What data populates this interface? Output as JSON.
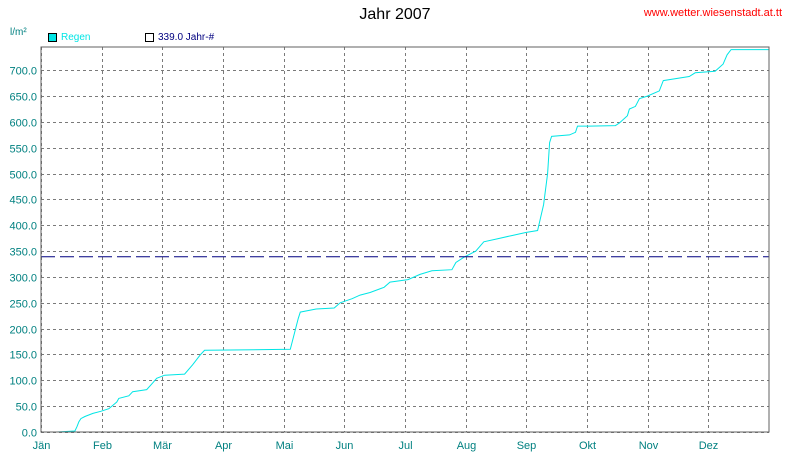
{
  "title": "Jahr 2007",
  "source_link": "www.wetter.wiesenstadt.at.tt",
  "y_unit": "l/m²",
  "legend": [
    {
      "label": "Regen",
      "color": "#00e5e5",
      "fill": "#00e5e5",
      "text_color": "#00e5e5"
    },
    {
      "label": "339.0 Jahr-#",
      "color": "#000080",
      "fill": "#ffffff",
      "text_color": "#000080"
    }
  ],
  "chart_data": {
    "type": "line",
    "title": "Jahr 2007",
    "ylabel": "l/m²",
    "x_ticks": [
      "Jän",
      "Feb",
      "Mär",
      "Apr",
      "Mai",
      "Jun",
      "Jul",
      "Aug",
      "Sep",
      "Okt",
      "Nov",
      "Dez"
    ],
    "y_ticks": [
      "0.0",
      "50.0",
      "100.0",
      "150.0",
      "200.0",
      "250.0",
      "300.0",
      "350.0",
      "400.0",
      "450.0",
      "500.0",
      "550.0",
      "600.0",
      "650.0",
      "700.0"
    ],
    "xlim": [
      0,
      365
    ],
    "ylim": [
      0,
      745
    ],
    "grid": true,
    "series": [
      {
        "name": "Regen",
        "color": "#00e5e5",
        "points": [
          [
            0,
            0
          ],
          [
            8,
            0
          ],
          [
            17,
            2
          ],
          [
            18,
            10
          ],
          [
            19,
            20
          ],
          [
            20,
            26
          ],
          [
            22,
            30
          ],
          [
            26,
            36
          ],
          [
            30,
            40
          ],
          [
            34,
            45
          ],
          [
            38,
            58
          ],
          [
            39,
            65
          ],
          [
            44,
            70
          ],
          [
            46,
            78
          ],
          [
            53,
            82
          ],
          [
            56,
            95
          ],
          [
            58,
            104
          ],
          [
            62,
            110
          ],
          [
            72,
            112
          ],
          [
            76,
            130
          ],
          [
            80,
            150
          ],
          [
            82,
            158
          ],
          [
            125,
            160
          ],
          [
            127,
            190
          ],
          [
            129,
            220
          ],
          [
            130,
            232
          ],
          [
            138,
            238
          ],
          [
            147,
            240
          ],
          [
            150,
            250
          ],
          [
            156,
            258
          ],
          [
            160,
            265
          ],
          [
            165,
            270
          ],
          [
            172,
            280
          ],
          [
            175,
            290
          ],
          [
            184,
            295
          ],
          [
            190,
            305
          ],
          [
            196,
            312
          ],
          [
            206,
            314
          ],
          [
            208,
            328
          ],
          [
            212,
            338
          ],
          [
            218,
            350
          ],
          [
            222,
            368
          ],
          [
            229,
            374
          ],
          [
            236,
            380
          ],
          [
            243,
            386
          ],
          [
            249,
            390
          ],
          [
            252,
            440
          ],
          [
            254,
            500
          ],
          [
            255,
            560
          ],
          [
            256,
            572
          ],
          [
            265,
            575
          ],
          [
            268,
            580
          ],
          [
            269,
            592
          ],
          [
            275,
            592
          ],
          [
            288,
            593
          ],
          [
            290,
            598
          ],
          [
            294,
            612
          ],
          [
            295,
            625
          ],
          [
            298,
            630
          ],
          [
            300,
            645
          ],
          [
            304,
            650
          ],
          [
            310,
            660
          ],
          [
            312,
            680
          ],
          [
            325,
            688
          ],
          [
            328,
            695
          ],
          [
            338,
            698
          ],
          [
            342,
            712
          ],
          [
            344,
            730
          ],
          [
            346,
            740
          ],
          [
            365,
            740
          ]
        ]
      },
      {
        "name": "339.0 Jahr-#",
        "color": "#000080",
        "constant": 339,
        "style": "dashed"
      }
    ]
  }
}
